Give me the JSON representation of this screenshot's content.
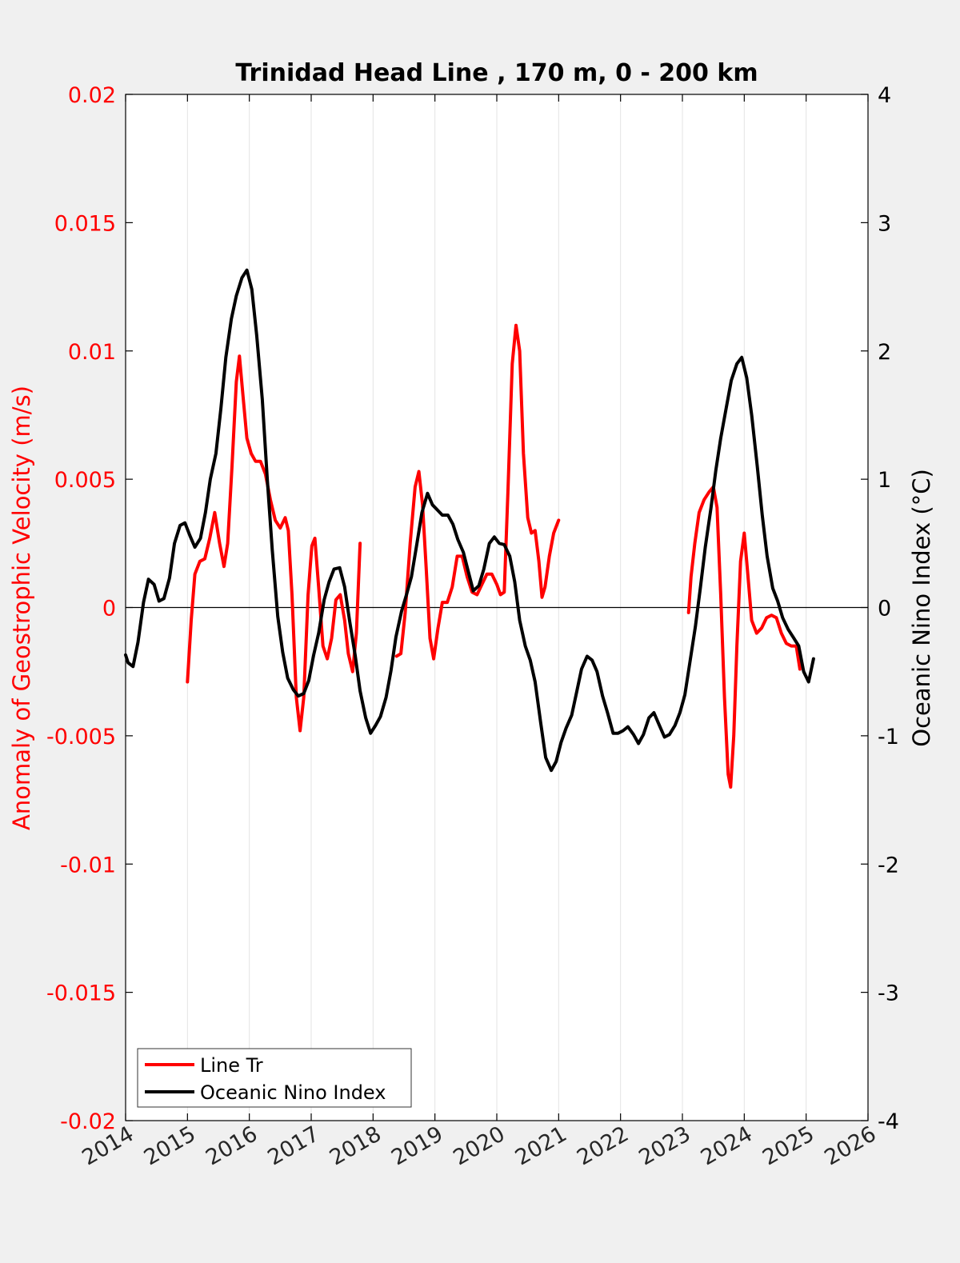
{
  "chart_data": {
    "type": "line",
    "title": "Trinidad Head Line , 170 m, 0 - 200 km",
    "xlabel": "",
    "ylabel_left": "Anomaly of Geostrophic Velocity (m/s)",
    "ylabel_right": "Oceanic Nino Index (°C)",
    "xlim": [
      2014,
      2026
    ],
    "ylim_left": [
      -0.02,
      0.02
    ],
    "ylim_right": [
      -4,
      4
    ],
    "x_ticks": [
      2014,
      2015,
      2016,
      2017,
      2018,
      2019,
      2020,
      2021,
      2022,
      2023,
      2024,
      2025,
      2026
    ],
    "x_tick_labels": [
      "2014",
      "2015",
      "2016",
      "2017",
      "2018",
      "2019",
      "2020",
      "2021",
      "2022",
      "2023",
      "2024",
      "2025",
      "2026"
    ],
    "y_left_ticks": [
      0.02,
      0.015,
      0.01,
      0.005,
      0,
      -0.005,
      -0.01,
      -0.015,
      -0.02
    ],
    "y_left_tick_labels": [
      "0.02",
      "0.015",
      "0.01",
      "0.005",
      "0",
      "-0.005",
      "-0.01",
      "-0.015",
      "-0.02"
    ],
    "y_right_ticks": [
      4,
      3,
      2,
      1,
      0,
      -1,
      -2,
      -3,
      -4
    ],
    "y_right_tick_labels": [
      "4",
      "3",
      "2",
      "1",
      "0",
      "-1",
      "-2",
      "-3",
      "-4"
    ],
    "grid": "vertical",
    "zero_line": true,
    "legend_position": "bottom-left",
    "colors": {
      "left_axis": "#ff0000",
      "right_axis": "#000000",
      "background": "#f0f0f0",
      "plot_bg": "#ffffff",
      "grid": "#e3e3e3"
    },
    "series": [
      {
        "name": "Line Tr",
        "axis": "left",
        "color": "#ff0000",
        "segments": [
          [
            [
              2015.0,
              -0.0029
            ],
            [
              2015.06,
              -0.0005
            ],
            [
              2015.12,
              0.0013
            ],
            [
              2015.2,
              0.0018
            ],
            [
              2015.28,
              0.0019
            ],
            [
              2015.36,
              0.0027
            ],
            [
              2015.44,
              0.0037
            ],
            [
              2015.52,
              0.0025
            ],
            [
              2015.59,
              0.0016
            ],
            [
              2015.65,
              0.0025
            ],
            [
              2015.72,
              0.0055
            ],
            [
              2015.79,
              0.0088
            ],
            [
              2015.84,
              0.0098
            ],
            [
              2015.9,
              0.0082
            ],
            [
              2015.96,
              0.0066
            ],
            [
              2016.03,
              0.006
            ],
            [
              2016.1,
              0.0057
            ],
            [
              2016.18,
              0.0057
            ],
            [
              2016.26,
              0.0052
            ],
            [
              2016.34,
              0.0042
            ],
            [
              2016.42,
              0.0034
            ],
            [
              2016.5,
              0.0031
            ],
            [
              2016.58,
              0.0035
            ],
            [
              2016.63,
              0.003
            ],
            [
              2016.69,
              0.0005
            ],
            [
              2016.76,
              -0.0035
            ],
            [
              2016.82,
              -0.0048
            ],
            [
              2016.88,
              -0.0035
            ],
            [
              2016.95,
              0.0005
            ],
            [
              2017.01,
              0.0024
            ],
            [
              2017.06,
              0.0027
            ],
            [
              2017.12,
              0.0008
            ],
            [
              2017.19,
              -0.0015
            ],
            [
              2017.26,
              -0.002
            ],
            [
              2017.33,
              -0.0012
            ],
            [
              2017.4,
              0.0003
            ],
            [
              2017.47,
              0.0005
            ],
            [
              2017.54,
              -0.0005
            ],
            [
              2017.6,
              -0.0018
            ],
            [
              2017.67,
              -0.0025
            ],
            [
              2017.73,
              -0.001
            ],
            [
              2017.79,
              0.0025
            ]
          ],
          [
            [
              2018.38,
              -0.0019
            ],
            [
              2018.45,
              -0.0018
            ],
            [
              2018.52,
              -0.0002
            ],
            [
              2018.6,
              0.0025
            ],
            [
              2018.68,
              0.0047
            ],
            [
              2018.74,
              0.0053
            ],
            [
              2018.8,
              0.004
            ],
            [
              2018.86,
              0.0015
            ],
            [
              2018.92,
              -0.0012
            ],
            [
              2018.98,
              -0.002
            ],
            [
              2019.05,
              -0.0008
            ],
            [
              2019.12,
              0.0002
            ],
            [
              2019.2,
              0.0002
            ],
            [
              2019.28,
              0.0008
            ],
            [
              2019.36,
              0.002
            ],
            [
              2019.44,
              0.002
            ],
            [
              2019.52,
              0.0012
            ],
            [
              2019.6,
              0.0006
            ],
            [
              2019.68,
              0.0005
            ],
            [
              2019.76,
              0.0009
            ],
            [
              2019.84,
              0.0013
            ],
            [
              2019.92,
              0.0013
            ],
            [
              2020.0,
              0.0009
            ],
            [
              2020.06,
              0.0005
            ],
            [
              2020.12,
              0.0006
            ],
            [
              2020.18,
              0.0045
            ],
            [
              2020.25,
              0.0095
            ],
            [
              2020.31,
              0.011
            ],
            [
              2020.37,
              0.01
            ],
            [
              2020.43,
              0.006
            ],
            [
              2020.5,
              0.0035
            ],
            [
              2020.56,
              0.0029
            ],
            [
              2020.62,
              0.003
            ],
            [
              2020.68,
              0.0018
            ],
            [
              2020.73,
              0.0004
            ],
            [
              2020.78,
              0.0008
            ],
            [
              2020.85,
              0.002
            ],
            [
              2020.92,
              0.0029
            ],
            [
              2021.0,
              0.0034
            ]
          ],
          [
            [
              2023.1,
              -0.0002
            ],
            [
              2023.14,
              0.0012
            ],
            [
              2023.2,
              0.0025
            ],
            [
              2023.27,
              0.0037
            ],
            [
              2023.35,
              0.0042
            ],
            [
              2023.43,
              0.0045
            ],
            [
              2023.5,
              0.0047
            ],
            [
              2023.56,
              0.0039
            ],
            [
              2023.62,
              0.0005
            ],
            [
              2023.68,
              -0.0035
            ],
            [
              2023.74,
              -0.0065
            ],
            [
              2023.78,
              -0.007
            ],
            [
              2023.83,
              -0.005
            ],
            [
              2023.88,
              -0.0015
            ],
            [
              2023.94,
              0.0018
            ],
            [
              2024.0,
              0.0029
            ],
            [
              2024.05,
              0.0015
            ],
            [
              2024.12,
              -0.0005
            ],
            [
              2024.2,
              -0.001
            ],
            [
              2024.28,
              -0.0008
            ],
            [
              2024.36,
              -0.0004
            ],
            [
              2024.44,
              -0.0003
            ],
            [
              2024.52,
              -0.0004
            ],
            [
              2024.6,
              -0.001
            ],
            [
              2024.68,
              -0.0014
            ],
            [
              2024.76,
              -0.0015
            ],
            [
              2024.84,
              -0.0015
            ],
            [
              2024.9,
              -0.0024
            ]
          ]
        ]
      },
      {
        "name": "Oceanic Nino Index",
        "axis": "right",
        "color": "#000000",
        "segments": [
          [
            [
              2014.0,
              -0.37
            ],
            [
              2014.04,
              -0.43
            ],
            [
              2014.12,
              -0.46
            ],
            [
              2014.2,
              -0.27
            ],
            [
              2014.29,
              0.04
            ],
            [
              2014.37,
              0.22
            ],
            [
              2014.46,
              0.18
            ],
            [
              2014.54,
              0.05
            ],
            [
              2014.62,
              0.07
            ],
            [
              2014.71,
              0.23
            ],
            [
              2014.79,
              0.5
            ],
            [
              2014.88,
              0.64
            ],
            [
              2014.96,
              0.66
            ],
            [
              2015.04,
              0.56
            ],
            [
              2015.12,
              0.47
            ],
            [
              2015.21,
              0.54
            ],
            [
              2015.29,
              0.74
            ],
            [
              2015.37,
              1.0
            ],
            [
              2015.46,
              1.2
            ],
            [
              2015.54,
              1.55
            ],
            [
              2015.62,
              1.95
            ],
            [
              2015.71,
              2.25
            ],
            [
              2015.79,
              2.43
            ],
            [
              2015.88,
              2.57
            ],
            [
              2015.96,
              2.63
            ],
            [
              2016.04,
              2.48
            ],
            [
              2016.12,
              2.12
            ],
            [
              2016.21,
              1.62
            ],
            [
              2016.29,
              1.0
            ],
            [
              2016.37,
              0.45
            ],
            [
              2016.46,
              -0.07
            ],
            [
              2016.54,
              -0.35
            ],
            [
              2016.62,
              -0.55
            ],
            [
              2016.71,
              -0.64
            ],
            [
              2016.79,
              -0.69
            ],
            [
              2016.88,
              -0.67
            ],
            [
              2016.96,
              -0.57
            ],
            [
              2017.04,
              -0.37
            ],
            [
              2017.12,
              -0.2
            ],
            [
              2017.21,
              0.06
            ],
            [
              2017.29,
              0.2
            ],
            [
              2017.37,
              0.3
            ],
            [
              2017.46,
              0.31
            ],
            [
              2017.54,
              0.16
            ],
            [
              2017.62,
              -0.1
            ],
            [
              2017.71,
              -0.37
            ],
            [
              2017.79,
              -0.65
            ],
            [
              2017.88,
              -0.86
            ],
            [
              2017.96,
              -0.98
            ],
            [
              2018.04,
              -0.92
            ],
            [
              2018.12,
              -0.85
            ],
            [
              2018.21,
              -0.7
            ],
            [
              2018.29,
              -0.49
            ],
            [
              2018.37,
              -0.23
            ],
            [
              2018.46,
              -0.03
            ],
            [
              2018.54,
              0.1
            ],
            [
              2018.62,
              0.24
            ],
            [
              2018.71,
              0.5
            ],
            [
              2018.79,
              0.74
            ],
            [
              2018.88,
              0.89
            ],
            [
              2018.96,
              0.8
            ],
            [
              2019.04,
              0.76
            ],
            [
              2019.12,
              0.72
            ],
            [
              2019.21,
              0.72
            ],
            [
              2019.29,
              0.65
            ],
            [
              2019.37,
              0.53
            ],
            [
              2019.46,
              0.43
            ],
            [
              2019.54,
              0.28
            ],
            [
              2019.62,
              0.13
            ],
            [
              2019.71,
              0.17
            ],
            [
              2019.79,
              0.3
            ],
            [
              2019.88,
              0.5
            ],
            [
              2019.96,
              0.55
            ],
            [
              2020.04,
              0.5
            ],
            [
              2020.12,
              0.49
            ],
            [
              2020.21,
              0.4
            ],
            [
              2020.29,
              0.2
            ],
            [
              2020.37,
              -0.1
            ],
            [
              2020.46,
              -0.3
            ],
            [
              2020.54,
              -0.41
            ],
            [
              2020.62,
              -0.58
            ],
            [
              2020.71,
              -0.9
            ],
            [
              2020.79,
              -1.17
            ],
            [
              2020.88,
              -1.27
            ],
            [
              2020.96,
              -1.2
            ],
            [
              2021.04,
              -1.05
            ],
            [
              2021.12,
              -0.94
            ],
            [
              2021.21,
              -0.84
            ],
            [
              2021.29,
              -0.66
            ],
            [
              2021.37,
              -0.48
            ],
            [
              2021.46,
              -0.38
            ],
            [
              2021.54,
              -0.41
            ],
            [
              2021.62,
              -0.5
            ],
            [
              2021.71,
              -0.69
            ],
            [
              2021.79,
              -0.82
            ],
            [
              2021.88,
              -0.98
            ],
            [
              2021.96,
              -0.98
            ],
            [
              2022.04,
              -0.96
            ],
            [
              2022.12,
              -0.93
            ],
            [
              2022.21,
              -0.99
            ],
            [
              2022.29,
              -1.06
            ],
            [
              2022.37,
              -0.99
            ],
            [
              2022.46,
              -0.86
            ],
            [
              2022.54,
              -0.82
            ],
            [
              2022.62,
              -0.91
            ],
            [
              2022.71,
              -1.01
            ],
            [
              2022.79,
              -0.99
            ],
            [
              2022.88,
              -0.92
            ],
            [
              2022.96,
              -0.82
            ],
            [
              2023.04,
              -0.68
            ],
            [
              2023.12,
              -0.43
            ],
            [
              2023.21,
              -0.15
            ],
            [
              2023.29,
              0.15
            ],
            [
              2023.37,
              0.47
            ],
            [
              2023.46,
              0.77
            ],
            [
              2023.54,
              1.07
            ],
            [
              2023.62,
              1.32
            ],
            [
              2023.71,
              1.56
            ],
            [
              2023.79,
              1.77
            ],
            [
              2023.88,
              1.9
            ],
            [
              2023.96,
              1.95
            ],
            [
              2024.04,
              1.79
            ],
            [
              2024.12,
              1.5
            ],
            [
              2024.21,
              1.1
            ],
            [
              2024.29,
              0.72
            ],
            [
              2024.37,
              0.4
            ],
            [
              2024.46,
              0.15
            ],
            [
              2024.54,
              0.05
            ],
            [
              2024.62,
              -0.08
            ],
            [
              2024.71,
              -0.17
            ],
            [
              2024.79,
              -0.23
            ],
            [
              2024.88,
              -0.3
            ],
            [
              2024.96,
              -0.5
            ],
            [
              2025.04,
              -0.58
            ],
            [
              2025.12,
              -0.4
            ]
          ]
        ]
      }
    ]
  }
}
